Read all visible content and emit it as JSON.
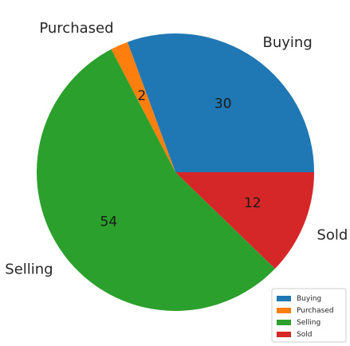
{
  "chart_data": {
    "type": "pie",
    "title": "",
    "categories": [
      "Buying",
      "Purchased",
      "Selling",
      "Sold"
    ],
    "values": [
      30,
      2,
      54,
      12
    ],
    "colors": [
      "#1f77b4",
      "#ff7f0e",
      "#2ca02c",
      "#d62728"
    ],
    "start_angle_deg": 0,
    "direction": "counterclockwise",
    "legend": {
      "placement": "bottom-right",
      "entries": [
        "Buying",
        "Purchased",
        "Selling",
        "Sold"
      ]
    }
  }
}
